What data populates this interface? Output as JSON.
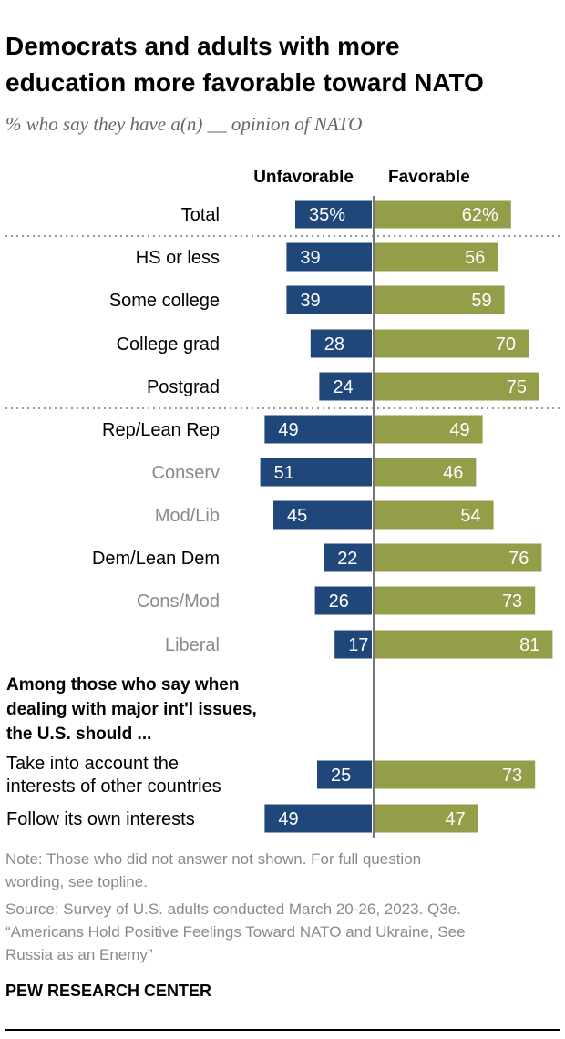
{
  "chart_data": {
    "type": "bar",
    "orientation": "horizontal-diverging",
    "title": "Democrats and adults with more education more favorable toward NATO",
    "subtitle": "% who say they have a(n) __ opinion of NATO",
    "legend": [
      "Unfavorable",
      "Favorable"
    ],
    "colors": {
      "unfavorable": "#1f4779",
      "favorable": "#949d48",
      "sub_label": "#8a8a8a"
    },
    "grid": false,
    "rows": [
      {
        "label": "Total",
        "unfavorable": 35,
        "favorable": 62,
        "unf_text": "35%",
        "fav_text": "62%",
        "style": "main"
      },
      {
        "label": "HS or less",
        "unfavorable": 39,
        "favorable": 56,
        "style": "main"
      },
      {
        "label": "Some college",
        "unfavorable": 39,
        "favorable": 59,
        "style": "main"
      },
      {
        "label": "College grad",
        "unfavorable": 28,
        "favorable": 70,
        "style": "main"
      },
      {
        "label": "Postgrad",
        "unfavorable": 24,
        "favorable": 75,
        "style": "main"
      },
      {
        "label": "Rep/Lean Rep",
        "unfavorable": 49,
        "favorable": 49,
        "style": "main"
      },
      {
        "label": "Conserv",
        "unfavorable": 51,
        "favorable": 46,
        "style": "sub"
      },
      {
        "label": "Mod/Lib",
        "unfavorable": 45,
        "favorable": 54,
        "style": "sub"
      },
      {
        "label": "Dem/Lean Dem",
        "unfavorable": 22,
        "favorable": 76,
        "style": "main"
      },
      {
        "label": "Cons/Mod",
        "unfavorable": 26,
        "favorable": 73,
        "style": "sub"
      },
      {
        "label": "Liberal",
        "unfavorable": 17,
        "favorable": 81,
        "style": "sub"
      },
      {
        "label": "Take into account the|interests of other countries",
        "unfavorable": 25,
        "favorable": 73,
        "style": "left"
      },
      {
        "label": "Follow its own interests",
        "unfavorable": 49,
        "favorable": 47,
        "style": "left"
      }
    ],
    "section_header": [
      "Among those who say when",
      "dealing with major int'l issues,",
      "the U.S. should ..."
    ]
  },
  "notes": [
    "Note: Those who did not answer not shown. For full question",
    "wording, see topline.",
    "Source: Survey of U.S. adults conducted March 20-26, 2023. Q3e.",
    "“Americans Hold Positive Feelings Toward NATO and Ukraine, See",
    "Russia as an Enemy”"
  ],
  "brand": "PEW RESEARCH CENTER"
}
